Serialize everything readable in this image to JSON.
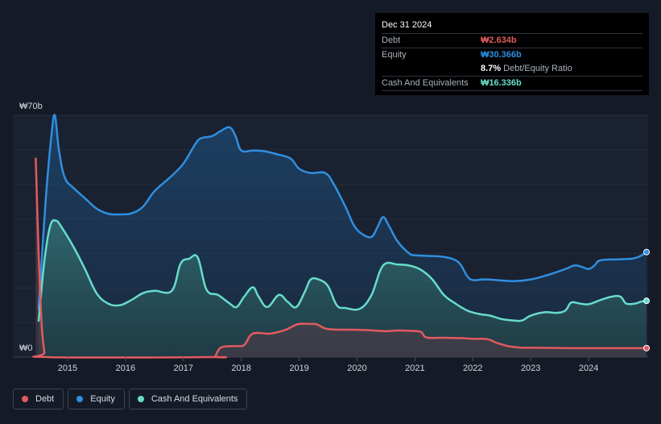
{
  "tooltip": {
    "date": "Dec 31 2024",
    "rows": [
      {
        "label": "Debt",
        "value": "₩2.634b",
        "color": "#e25a5f"
      },
      {
        "label": "Equity",
        "value": "₩30.366b",
        "color": "#2f8fe0"
      },
      {
        "label": "",
        "value": "8.7%",
        "suffix": "Debt/Equity Ratio",
        "color": "#ffffff"
      },
      {
        "label": "Cash And Equivalents",
        "value": "₩16.336b",
        "color": "#67dccb"
      }
    ]
  },
  "legend": [
    {
      "label": "Debt",
      "color": "#e25a5f"
    },
    {
      "label": "Equity",
      "color": "#2f8fe0"
    },
    {
      "label": "Cash And Equivalents",
      "color": "#67dccb"
    }
  ],
  "chart_data": {
    "type": "area",
    "title": "",
    "y_top_label": "₩70b",
    "y_bottom_label": "₩0",
    "ylim": [
      0,
      70
    ],
    "xlim": [
      2014.5,
      2025.0
    ],
    "x_ticks": [
      "2015",
      "2016",
      "2017",
      "2018",
      "2019",
      "2020",
      "2021",
      "2022",
      "2023",
      "2024"
    ],
    "series": [
      {
        "name": "Equity",
        "color": "#2f8fe0",
        "points": [
          [
            2014.5,
            14
          ],
          [
            2014.62,
            45
          ],
          [
            2014.72,
            64
          ],
          [
            2014.78,
            70
          ],
          [
            2014.85,
            60
          ],
          [
            2014.95,
            52
          ],
          [
            2015.1,
            49
          ],
          [
            2015.3,
            46
          ],
          [
            2015.5,
            43
          ],
          [
            2015.7,
            41.5
          ],
          [
            2015.9,
            41.3
          ],
          [
            2016.1,
            41.6
          ],
          [
            2016.3,
            43.5
          ],
          [
            2016.5,
            48
          ],
          [
            2016.8,
            52.5
          ],
          [
            2017.0,
            56
          ],
          [
            2017.2,
            61.5
          ],
          [
            2017.3,
            63.3
          ],
          [
            2017.5,
            64
          ],
          [
            2017.65,
            65.5
          ],
          [
            2017.8,
            66.5
          ],
          [
            2017.9,
            64
          ],
          [
            2018.0,
            59.8
          ],
          [
            2018.2,
            59.8
          ],
          [
            2018.4,
            59.6
          ],
          [
            2018.6,
            58.8
          ],
          [
            2018.85,
            57.5
          ],
          [
            2019.0,
            54.5
          ],
          [
            2019.2,
            53.3
          ],
          [
            2019.45,
            53.3
          ],
          [
            2019.6,
            50
          ],
          [
            2019.8,
            43.5
          ],
          [
            2019.95,
            38
          ],
          [
            2020.1,
            35.5
          ],
          [
            2020.25,
            34.8
          ],
          [
            2020.35,
            37.5
          ],
          [
            2020.45,
            40.5
          ],
          [
            2020.55,
            38
          ],
          [
            2020.7,
            33.5
          ],
          [
            2020.9,
            30
          ],
          [
            2021.0,
            29.5
          ],
          [
            2021.2,
            29.3
          ],
          [
            2021.5,
            29
          ],
          [
            2021.75,
            27.5
          ],
          [
            2021.9,
            23.5
          ],
          [
            2022.0,
            22.3
          ],
          [
            2022.2,
            22.5
          ],
          [
            2022.4,
            22.3
          ],
          [
            2022.7,
            22
          ],
          [
            2023.0,
            22.5
          ],
          [
            2023.3,
            23.8
          ],
          [
            2023.6,
            25.5
          ],
          [
            2023.75,
            26.5
          ],
          [
            2023.85,
            26.3
          ],
          [
            2024.0,
            25.5
          ],
          [
            2024.1,
            26.5
          ],
          [
            2024.2,
            28
          ],
          [
            2024.5,
            28.3
          ],
          [
            2024.75,
            28.5
          ],
          [
            2024.9,
            29.3
          ],
          [
            2025.0,
            30.4
          ]
        ]
      },
      {
        "name": "Cash And Equivalents",
        "color": "#67dccb",
        "points": [
          [
            2014.5,
            10.5
          ],
          [
            2014.6,
            28
          ],
          [
            2014.7,
            38
          ],
          [
            2014.8,
            39.5
          ],
          [
            2014.9,
            37.5
          ],
          [
            2015.1,
            32
          ],
          [
            2015.3,
            25.5
          ],
          [
            2015.5,
            18.5
          ],
          [
            2015.7,
            15.5
          ],
          [
            2015.9,
            15
          ],
          [
            2016.1,
            16.5
          ],
          [
            2016.3,
            18.5
          ],
          [
            2016.5,
            19.2
          ],
          [
            2016.8,
            19.2
          ],
          [
            2016.95,
            27
          ],
          [
            2017.1,
            28.5
          ],
          [
            2017.25,
            28.8
          ],
          [
            2017.4,
            19.5
          ],
          [
            2017.6,
            18
          ],
          [
            2017.8,
            15.5
          ],
          [
            2017.92,
            14.5
          ],
          [
            2018.05,
            17.5
          ],
          [
            2018.2,
            20.2
          ],
          [
            2018.3,
            17.5
          ],
          [
            2018.45,
            14.5
          ],
          [
            2018.65,
            18
          ],
          [
            2018.8,
            16
          ],
          [
            2018.95,
            14.5
          ],
          [
            2019.1,
            19
          ],
          [
            2019.2,
            22.5
          ],
          [
            2019.35,
            22.4
          ],
          [
            2019.5,
            20.5
          ],
          [
            2019.65,
            15
          ],
          [
            2019.8,
            14.2
          ],
          [
            2020.05,
            14
          ],
          [
            2020.25,
            18
          ],
          [
            2020.45,
            26.5
          ],
          [
            2020.7,
            26.8
          ],
          [
            2020.9,
            26.5
          ],
          [
            2021.1,
            25.3
          ],
          [
            2021.3,
            22.5
          ],
          [
            2021.5,
            18
          ],
          [
            2021.7,
            15.5
          ],
          [
            2021.9,
            13.5
          ],
          [
            2022.1,
            12.5
          ],
          [
            2022.3,
            12
          ],
          [
            2022.5,
            11
          ],
          [
            2022.7,
            10.6
          ],
          [
            2022.85,
            10.6
          ],
          [
            2023.0,
            12
          ],
          [
            2023.25,
            13
          ],
          [
            2023.45,
            12.8
          ],
          [
            2023.6,
            13.5
          ],
          [
            2023.7,
            15.8
          ],
          [
            2023.85,
            15.5
          ],
          [
            2024.0,
            15.3
          ],
          [
            2024.2,
            16.5
          ],
          [
            2024.4,
            17.5
          ],
          [
            2024.55,
            17.5
          ],
          [
            2024.65,
            15.5
          ],
          [
            2024.8,
            15.5
          ],
          [
            2024.9,
            16
          ],
          [
            2025.0,
            16.3
          ]
        ]
      },
      {
        "name": "Debt",
        "color": "#e25a5f",
        "points": [
          [
            2014.45,
            57.5
          ],
          [
            2014.5,
            30
          ],
          [
            2014.55,
            10
          ],
          [
            2014.6,
            1.5
          ],
          [
            2014.65,
            0
          ],
          [
            2017.5,
            0
          ],
          [
            2017.55,
            0.2
          ],
          [
            2017.65,
            2.8
          ],
          [
            2017.9,
            3.2
          ],
          [
            2018.05,
            3.5
          ],
          [
            2018.2,
            6.8
          ],
          [
            2018.5,
            6.8
          ],
          [
            2018.75,
            7.8
          ],
          [
            2018.9,
            9
          ],
          [
            2019.0,
            9.6
          ],
          [
            2019.2,
            9.6
          ],
          [
            2019.3,
            9.5
          ],
          [
            2019.45,
            8.3
          ],
          [
            2019.6,
            8
          ],
          [
            2020.0,
            7.9
          ],
          [
            2020.2,
            7.8
          ],
          [
            2020.5,
            7.5
          ],
          [
            2020.7,
            7.7
          ],
          [
            2020.9,
            7.6
          ],
          [
            2021.1,
            7.3
          ],
          [
            2021.2,
            5.7
          ],
          [
            2021.5,
            5.6
          ],
          [
            2021.8,
            5.5
          ],
          [
            2022.0,
            5.3
          ],
          [
            2022.25,
            5.2
          ],
          [
            2022.4,
            4.2
          ],
          [
            2022.6,
            3.2
          ],
          [
            2022.8,
            2.8
          ],
          [
            2023.0,
            2.7
          ],
          [
            2024.0,
            2.6
          ],
          [
            2025.0,
            2.6
          ]
        ]
      }
    ]
  }
}
